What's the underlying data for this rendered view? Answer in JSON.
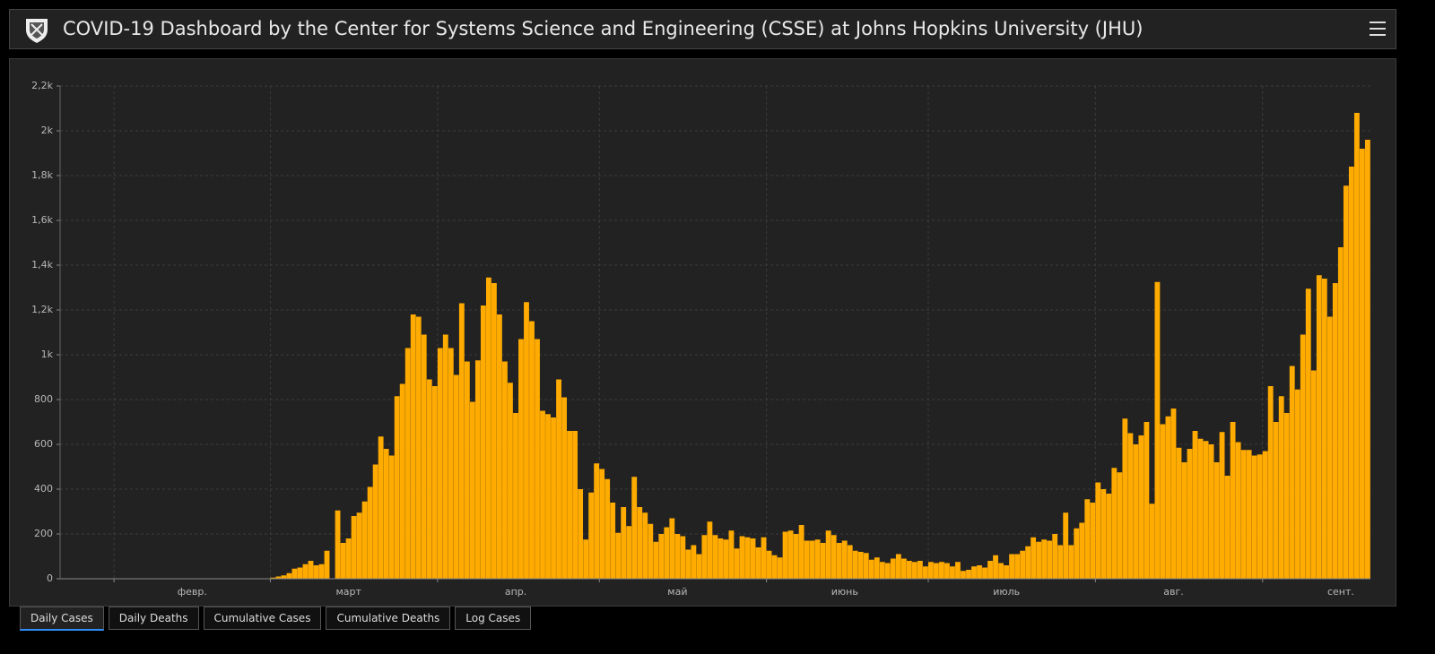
{
  "header": {
    "title": "COVID-19 Dashboard by the Center for Systems Science and Engineering (CSSE) at Johns Hopkins University (JHU)"
  },
  "tabs": [
    "Daily Cases",
    "Daily Deaths",
    "Cumulative Cases",
    "Cumulative Deaths",
    "Log Cases"
  ],
  "chart_data": {
    "type": "bar",
    "color": "#ffab00",
    "grid": true,
    "ylim": [
      0,
      2200
    ],
    "yticks": [
      0,
      200,
      400,
      600,
      800,
      {
        "value": 1000,
        "label": "1k"
      },
      {
        "value": 1200,
        "label": "1,2k"
      },
      {
        "value": 1400,
        "label": "1,4k"
      },
      {
        "value": 1600,
        "label": "1,6k"
      },
      {
        "value": 1800,
        "label": "1,8k"
      },
      {
        "value": 2000,
        "label": "2k"
      },
      {
        "value": 2200,
        "label": "2,2k"
      }
    ],
    "categories": [
      null,
      null,
      null,
      null,
      null,
      null,
      null,
      null,
      null,
      null,
      null,
      null,
      null,
      null,
      null,
      null,
      null,
      null,
      null,
      null,
      null,
      null,
      null,
      null,
      "февр.",
      null,
      null,
      null,
      null,
      null,
      null,
      null,
      null,
      null,
      null,
      null,
      null,
      null,
      null,
      null,
      null,
      null,
      null,
      null,
      null,
      null,
      null,
      null,
      null,
      null,
      null,
      null,
      null,
      "март",
      null,
      null,
      null,
      null,
      null,
      null,
      null,
      null,
      null,
      null,
      null,
      null,
      null,
      null,
      null,
      null,
      null,
      null,
      null,
      null,
      null,
      null,
      null,
      null,
      null,
      null,
      null,
      null,
      null,
      null,
      "апр.",
      null,
      null,
      null,
      null,
      null,
      null,
      null,
      null,
      null,
      null,
      null,
      null,
      null,
      null,
      null,
      null,
      null,
      null,
      null,
      null,
      null,
      null,
      null,
      null,
      null,
      null,
      null,
      null,
      null,
      "май",
      null,
      null,
      null,
      null,
      null,
      null,
      null,
      null,
      null,
      null,
      null,
      null,
      null,
      null,
      null,
      null,
      null,
      null,
      null,
      null,
      null,
      null,
      null,
      null,
      null,
      null,
      null,
      null,
      null,
      null,
      "июнь",
      null,
      null,
      null,
      null,
      null,
      null,
      null,
      null,
      null,
      null,
      null,
      null,
      null,
      null,
      null,
      null,
      null,
      null,
      null,
      null,
      null,
      null,
      null,
      null,
      null,
      null,
      null,
      null,
      null,
      "июль",
      null,
      null,
      null,
      null,
      null,
      null,
      null,
      null,
      null,
      null,
      null,
      null,
      null,
      null,
      null,
      null,
      null,
      null,
      null,
      null,
      null,
      null,
      null,
      null,
      null,
      null,
      null,
      null,
      null,
      null,
      "авг.",
      null,
      null,
      null,
      null,
      null,
      null,
      null,
      null,
      null,
      null,
      null,
      null,
      null,
      null,
      null,
      null,
      null,
      null,
      null,
      null,
      null,
      null,
      null,
      null,
      null,
      null,
      null,
      null,
      null,
      null,
      "сент.",
      null,
      null,
      null,
      null,
      null
    ],
    "values": [
      0,
      0,
      0,
      0,
      0,
      0,
      0,
      0,
      0,
      0,
      0,
      0,
      0,
      0,
      0,
      0,
      0,
      0,
      0,
      0,
      0,
      0,
      0,
      0,
      0,
      0,
      0,
      0,
      0,
      0,
      0,
      0,
      0,
      0,
      0,
      0,
      0,
      0,
      0,
      5,
      10,
      15,
      25,
      45,
      50,
      65,
      80,
      60,
      65,
      125,
      0,
      305,
      160,
      180,
      280,
      295,
      345,
      410,
      510,
      635,
      580,
      550,
      815,
      870,
      1030,
      1180,
      1170,
      1090,
      890,
      860,
      1030,
      1090,
      1030,
      910,
      1230,
      970,
      790,
      975,
      1220,
      1345,
      1320,
      1180,
      970,
      875,
      740,
      1070,
      1235,
      1150,
      1070,
      750,
      735,
      720,
      890,
      810,
      660,
      660,
      400,
      175,
      385,
      515,
      490,
      445,
      340,
      205,
      320,
      235,
      455,
      320,
      295,
      245,
      165,
      200,
      230,
      270,
      200,
      190,
      130,
      150,
      110,
      195,
      255,
      195,
      180,
      175,
      215,
      135,
      190,
      185,
      180,
      140,
      185,
      125,
      105,
      95,
      210,
      215,
      200,
      240,
      170,
      170,
      175,
      160,
      215,
      195,
      160,
      170,
      150,
      125,
      120,
      115,
      85,
      95,
      75,
      70,
      90,
      110,
      90,
      80,
      75,
      80,
      55,
      75,
      70,
      75,
      70,
      55,
      75,
      35,
      40,
      55,
      60,
      50,
      80,
      105,
      70,
      60,
      110,
      110,
      125,
      145,
      185,
      165,
      175,
      170,
      200,
      150,
      295,
      150,
      225,
      250,
      355,
      340,
      430,
      400,
      380,
      495,
      475,
      715,
      650,
      600,
      640,
      700,
      335,
      1325,
      690,
      725,
      760,
      585,
      520,
      580,
      660,
      625,
      615,
      600,
      520,
      655,
      460,
      700,
      610,
      575,
      575,
      550,
      555,
      570,
      860,
      700,
      815,
      740,
      950,
      845,
      1090,
      1295,
      930,
      1355,
      1340,
      1170,
      1320,
      1480,
      1755,
      1840,
      2080,
      1920,
      1960
    ]
  }
}
